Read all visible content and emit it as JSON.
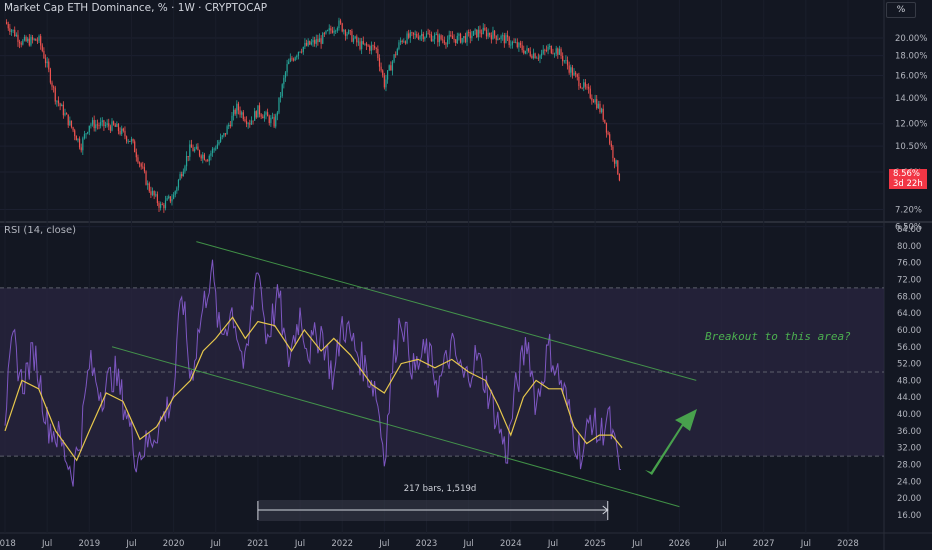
{
  "header": {
    "title": "Market Cap ETH Dominance, % · 1W · CRYPTOCAP",
    "scale_button": "%",
    "rsi_title": "RSI (14, close)"
  },
  "price_tag": {
    "value": "8.56%",
    "countdown": "3d 22h"
  },
  "annotation": "Breakout to this area?",
  "measure": {
    "label": "217 bars, 1,519d"
  },
  "colors": {
    "background": "#131722",
    "up": "#26a69a",
    "down": "#ef5350",
    "rsi_line": "#7e57c2",
    "rsi_ma": "#e6c74c",
    "channel": "#4caf50",
    "arrow": "#4caf50",
    "band_fill": "#2a2540"
  },
  "chart_data": [
    {
      "type": "candlestick",
      "title": "Market Cap ETH Dominance, % · 1W · CRYPTOCAP",
      "y_scale": "log",
      "y_ticks": [
        "20.00%",
        "18.00%",
        "16.00%",
        "14.00%",
        "12.00%",
        "10.50%",
        "9.00%",
        "7.20%",
        "6.50%"
      ],
      "x_ticks": [
        "2018",
        "Jul",
        "2019",
        "Jul",
        "2020",
        "Jul",
        "2021",
        "Jul",
        "2022",
        "Jul",
        "2023",
        "Jul",
        "2024",
        "Jul",
        "2025",
        "Jul",
        "2026",
        "Jul",
        "2027",
        "Jul",
        "2028"
      ],
      "close_path": [
        {
          "x": 2018.0,
          "y": 22.0
        },
        {
          "x": 2018.2,
          "y": 19.5
        },
        {
          "x": 2018.4,
          "y": 19.8
        },
        {
          "x": 2018.6,
          "y": 14.0
        },
        {
          "x": 2018.75,
          "y": 12.2
        },
        {
          "x": 2018.9,
          "y": 10.5
        },
        {
          "x": 2019.0,
          "y": 12.0
        },
        {
          "x": 2019.3,
          "y": 11.8
        },
        {
          "x": 2019.5,
          "y": 10.8
        },
        {
          "x": 2019.7,
          "y": 8.2
        },
        {
          "x": 2019.85,
          "y": 7.3
        },
        {
          "x": 2020.0,
          "y": 7.8
        },
        {
          "x": 2020.2,
          "y": 10.4
        },
        {
          "x": 2020.4,
          "y": 9.8
        },
        {
          "x": 2020.6,
          "y": 11.2
        },
        {
          "x": 2020.75,
          "y": 13.2
        },
        {
          "x": 2020.9,
          "y": 12.1
        },
        {
          "x": 2021.0,
          "y": 13.0
        },
        {
          "x": 2021.2,
          "y": 12.0
        },
        {
          "x": 2021.35,
          "y": 17.0
        },
        {
          "x": 2021.5,
          "y": 18.8
        },
        {
          "x": 2021.75,
          "y": 19.8
        },
        {
          "x": 2021.95,
          "y": 21.8
        },
        {
          "x": 2022.2,
          "y": 19.2
        },
        {
          "x": 2022.4,
          "y": 18.8
        },
        {
          "x": 2022.5,
          "y": 15.2
        },
        {
          "x": 2022.7,
          "y": 19.8
        },
        {
          "x": 2022.95,
          "y": 20.5
        },
        {
          "x": 2023.2,
          "y": 19.8
        },
        {
          "x": 2023.45,
          "y": 20.0
        },
        {
          "x": 2023.65,
          "y": 20.8
        },
        {
          "x": 2023.85,
          "y": 20.2
        },
        {
          "x": 2024.0,
          "y": 19.5
        },
        {
          "x": 2024.2,
          "y": 18.4
        },
        {
          "x": 2024.35,
          "y": 18.0
        },
        {
          "x": 2024.45,
          "y": 18.8
        },
        {
          "x": 2024.55,
          "y": 18.6
        },
        {
          "x": 2024.75,
          "y": 16.0
        },
        {
          "x": 2024.9,
          "y": 14.6
        },
        {
          "x": 2025.0,
          "y": 13.8
        },
        {
          "x": 2025.1,
          "y": 12.5
        },
        {
          "x": 2025.2,
          "y": 10.2
        },
        {
          "x": 2025.3,
          "y": 8.56
        }
      ],
      "last_value": 8.56
    },
    {
      "type": "line",
      "title": "RSI (14, close)",
      "ylim": [
        16,
        84
      ],
      "y_ticks": [
        84,
        80,
        76,
        72,
        68,
        64,
        60,
        56,
        52,
        48,
        44,
        40,
        36,
        32,
        28,
        24,
        20,
        16
      ],
      "band": [
        30,
        70
      ],
      "midline": 50,
      "rsi_path": [
        {
          "x": 2018.0,
          "y": 40
        },
        {
          "x": 2018.1,
          "y": 58
        },
        {
          "x": 2018.2,
          "y": 47
        },
        {
          "x": 2018.35,
          "y": 55
        },
        {
          "x": 2018.5,
          "y": 38
        },
        {
          "x": 2018.65,
          "y": 34
        },
        {
          "x": 2018.8,
          "y": 26
        },
        {
          "x": 2018.9,
          "y": 35
        },
        {
          "x": 2019.0,
          "y": 52
        },
        {
          "x": 2019.15,
          "y": 45
        },
        {
          "x": 2019.3,
          "y": 50
        },
        {
          "x": 2019.45,
          "y": 40
        },
        {
          "x": 2019.55,
          "y": 30
        },
        {
          "x": 2019.7,
          "y": 33
        },
        {
          "x": 2019.85,
          "y": 38
        },
        {
          "x": 2020.0,
          "y": 45
        },
        {
          "x": 2020.1,
          "y": 70
        },
        {
          "x": 2020.2,
          "y": 48
        },
        {
          "x": 2020.3,
          "y": 60
        },
        {
          "x": 2020.45,
          "y": 75
        },
        {
          "x": 2020.55,
          "y": 58
        },
        {
          "x": 2020.7,
          "y": 65
        },
        {
          "x": 2020.85,
          "y": 50
        },
        {
          "x": 2021.0,
          "y": 77
        },
        {
          "x": 2021.1,
          "y": 58
        },
        {
          "x": 2021.25,
          "y": 68
        },
        {
          "x": 2021.35,
          "y": 52
        },
        {
          "x": 2021.5,
          "y": 64
        },
        {
          "x": 2021.6,
          "y": 55
        },
        {
          "x": 2021.75,
          "y": 60
        },
        {
          "x": 2021.9,
          "y": 48
        },
        {
          "x": 2022.0,
          "y": 62
        },
        {
          "x": 2022.15,
          "y": 56
        },
        {
          "x": 2022.3,
          "y": 50
        },
        {
          "x": 2022.4,
          "y": 46
        },
        {
          "x": 2022.5,
          "y": 30
        },
        {
          "x": 2022.6,
          "y": 52
        },
        {
          "x": 2022.7,
          "y": 64
        },
        {
          "x": 2022.85,
          "y": 50
        },
        {
          "x": 2023.0,
          "y": 55
        },
        {
          "x": 2023.15,
          "y": 47
        },
        {
          "x": 2023.3,
          "y": 56
        },
        {
          "x": 2023.45,
          "y": 48
        },
        {
          "x": 2023.6,
          "y": 54
        },
        {
          "x": 2023.75,
          "y": 44
        },
        {
          "x": 2023.85,
          "y": 38
        },
        {
          "x": 2023.95,
          "y": 30
        },
        {
          "x": 2024.05,
          "y": 45
        },
        {
          "x": 2024.2,
          "y": 58
        },
        {
          "x": 2024.3,
          "y": 42
        },
        {
          "x": 2024.45,
          "y": 56
        },
        {
          "x": 2024.55,
          "y": 50
        },
        {
          "x": 2024.65,
          "y": 44
        },
        {
          "x": 2024.75,
          "y": 35
        },
        {
          "x": 2024.85,
          "y": 30
        },
        {
          "x": 2024.95,
          "y": 40
        },
        {
          "x": 2025.05,
          "y": 34
        },
        {
          "x": 2025.15,
          "y": 40
        },
        {
          "x": 2025.25,
          "y": 30
        },
        {
          "x": 2025.32,
          "y": 25
        }
      ],
      "ma_path": [
        {
          "x": 2018.0,
          "y": 36
        },
        {
          "x": 2018.2,
          "y": 48
        },
        {
          "x": 2018.4,
          "y": 46
        },
        {
          "x": 2018.6,
          "y": 36
        },
        {
          "x": 2018.85,
          "y": 29
        },
        {
          "x": 2019.0,
          "y": 36
        },
        {
          "x": 2019.2,
          "y": 45
        },
        {
          "x": 2019.4,
          "y": 43
        },
        {
          "x": 2019.6,
          "y": 34
        },
        {
          "x": 2019.8,
          "y": 37
        },
        {
          "x": 2020.0,
          "y": 44
        },
        {
          "x": 2020.2,
          "y": 48
        },
        {
          "x": 2020.35,
          "y": 55
        },
        {
          "x": 2020.5,
          "y": 58
        },
        {
          "x": 2020.7,
          "y": 63
        },
        {
          "x": 2020.85,
          "y": 58
        },
        {
          "x": 2021.0,
          "y": 62
        },
        {
          "x": 2021.2,
          "y": 61
        },
        {
          "x": 2021.4,
          "y": 55
        },
        {
          "x": 2021.55,
          "y": 60
        },
        {
          "x": 2021.75,
          "y": 55
        },
        {
          "x": 2021.9,
          "y": 58
        },
        {
          "x": 2022.1,
          "y": 54
        },
        {
          "x": 2022.35,
          "y": 47
        },
        {
          "x": 2022.5,
          "y": 45
        },
        {
          "x": 2022.7,
          "y": 52
        },
        {
          "x": 2022.9,
          "y": 53
        },
        {
          "x": 2023.1,
          "y": 51
        },
        {
          "x": 2023.3,
          "y": 53
        },
        {
          "x": 2023.5,
          "y": 50
        },
        {
          "x": 2023.7,
          "y": 48
        },
        {
          "x": 2023.85,
          "y": 42
        },
        {
          "x": 2024.0,
          "y": 35
        },
        {
          "x": 2024.15,
          "y": 44
        },
        {
          "x": 2024.3,
          "y": 48
        },
        {
          "x": 2024.45,
          "y": 46
        },
        {
          "x": 2024.6,
          "y": 46
        },
        {
          "x": 2024.75,
          "y": 37
        },
        {
          "x": 2024.9,
          "y": 33
        },
        {
          "x": 2025.05,
          "y": 35
        },
        {
          "x": 2025.2,
          "y": 35
        },
        {
          "x": 2025.32,
          "y": 32
        }
      ],
      "channel_lines": [
        [
          {
            "x": 2020.27,
            "y": 81
          },
          {
            "x": 2026.2,
            "y": 48
          }
        ],
        [
          {
            "x": 2019.27,
            "y": 56
          },
          {
            "x": 2026.0,
            "y": 18
          }
        ]
      ],
      "measure_range": {
        "x_start": 2021.0,
        "x_end": 2025.15
      }
    }
  ]
}
